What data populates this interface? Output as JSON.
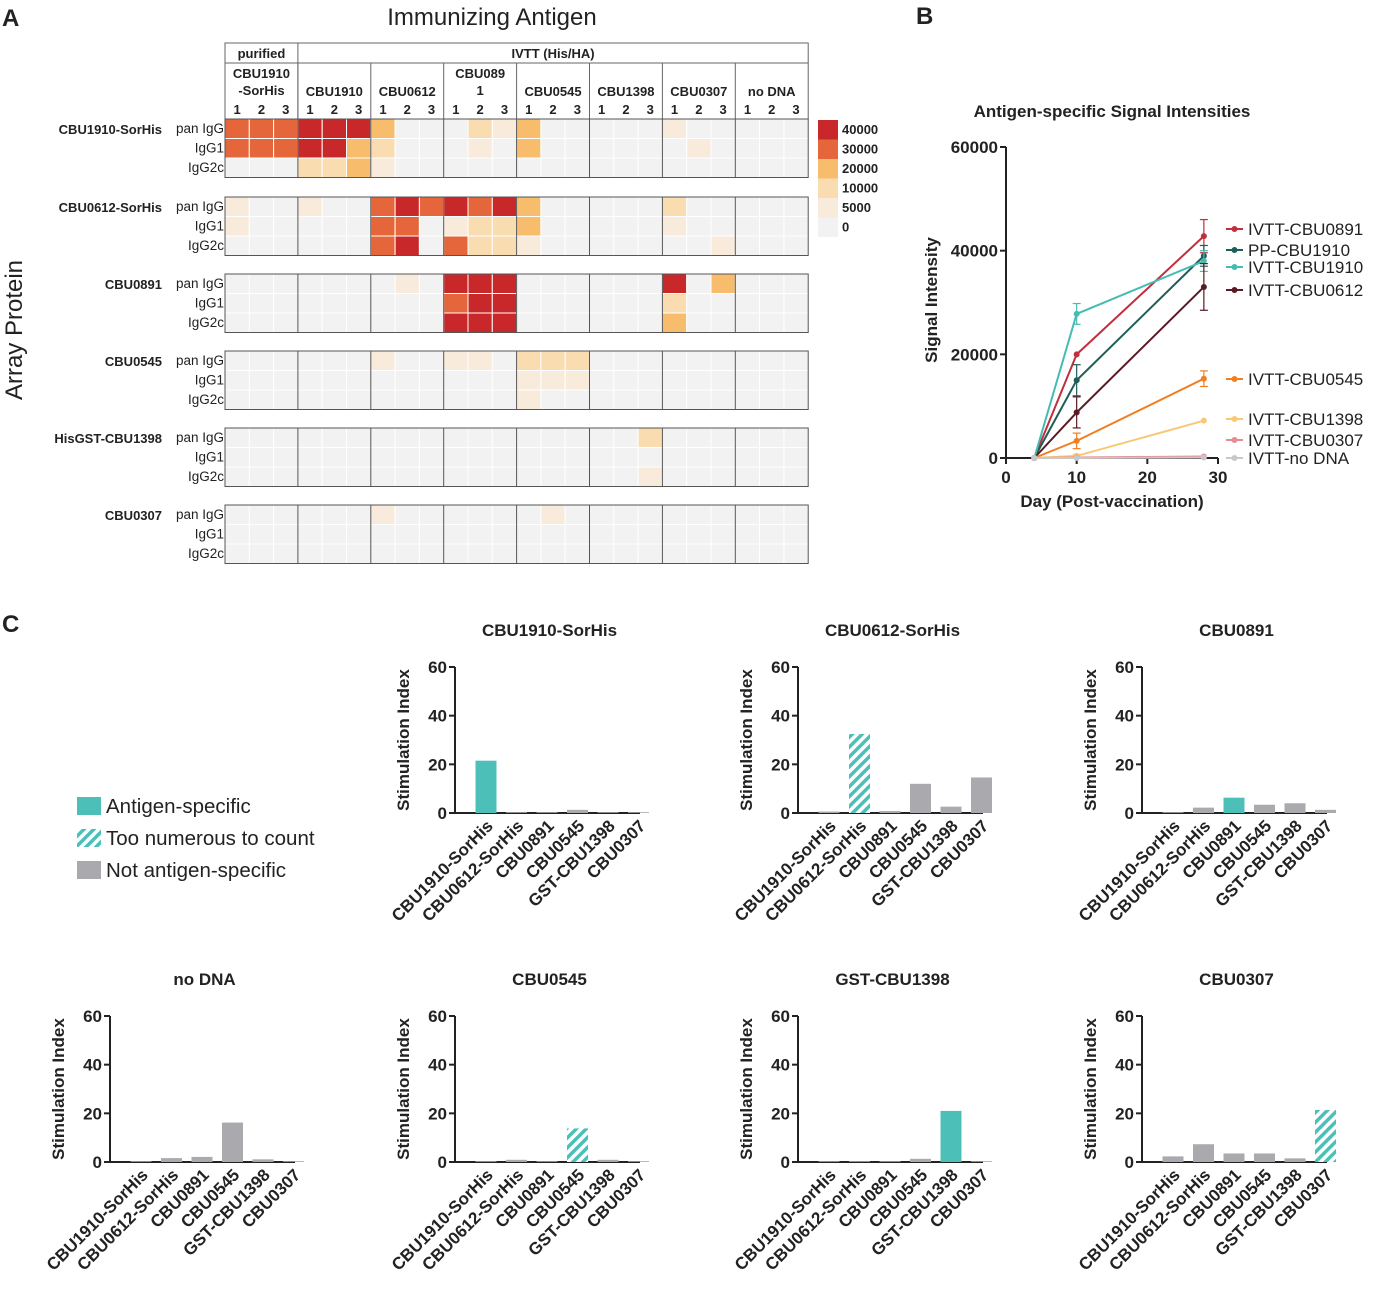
{
  "panel_labels": [
    "A",
    "B",
    "C"
  ],
  "heatmap": {
    "title": "Immunizing Antigen",
    "y_axis_title": "Array Protein",
    "group_headers": [
      "purified",
      "IVTT (His/HA)"
    ],
    "antigens": [
      "CBU1910\n-SorHis",
      "CBU1910",
      "CBU0612",
      "CBU089\n1",
      "CBU0545",
      "CBU1398",
      "CBU0307",
      "no DNA"
    ],
    "replicates": [
      "1",
      "2",
      "3"
    ],
    "proteins": [
      "CBU1910-SorHis",
      "CBU0612-SorHis",
      "CBU0891",
      "CBU0545",
      "HisGST-CBU1398",
      "CBU0307"
    ],
    "subclasses": [
      "pan IgG",
      "IgG1",
      "IgG2c"
    ],
    "legend": {
      "values": [
        "40000",
        "30000",
        "20000",
        "10000",
        "5000",
        "0"
      ],
      "colors": [
        "#c8282a",
        "#e4663a",
        "#f7bc6c",
        "#f9dcb0",
        "#f8ebdc",
        "#f2f2f2"
      ]
    },
    "palette": [
      "#f2f2f2",
      "#f8ebdc",
      "#f9dcb0",
      "#f7bc6c",
      "#e4663a",
      "#c8282a"
    ],
    "levels": [
      [
        [
          4,
          4,
          4,
          5,
          5,
          5,
          3,
          0,
          0,
          0,
          2,
          1,
          3,
          0,
          0,
          0,
          0,
          0,
          1,
          0,
          0,
          0,
          0,
          0
        ],
        [
          4,
          4,
          4,
          5,
          5,
          3,
          2,
          0,
          0,
          0,
          1,
          0,
          3,
          0,
          0,
          0,
          0,
          0,
          0,
          1,
          0,
          0,
          0,
          0
        ],
        [
          0,
          0,
          0,
          2,
          2,
          3,
          1,
          0,
          0,
          0,
          0,
          0,
          0,
          0,
          0,
          0,
          0,
          0,
          0,
          0,
          0,
          0,
          0,
          0
        ]
      ],
      [
        [
          1,
          0,
          0,
          1,
          0,
          0,
          4,
          5,
          4,
          5,
          4,
          5,
          3,
          0,
          0,
          0,
          0,
          0,
          2,
          0,
          0,
          0,
          0,
          0
        ],
        [
          1,
          0,
          0,
          0,
          0,
          0,
          4,
          4,
          0,
          1,
          2,
          2,
          3,
          0,
          0,
          0,
          0,
          0,
          1,
          0,
          0,
          0,
          0,
          0
        ],
        [
          0,
          0,
          0,
          0,
          0,
          0,
          4,
          5,
          0,
          4,
          2,
          2,
          1,
          0,
          0,
          0,
          0,
          0,
          0,
          0,
          1,
          0,
          0,
          0
        ]
      ],
      [
        [
          0,
          0,
          0,
          0,
          0,
          0,
          0,
          1,
          0,
          5,
          5,
          5,
          0,
          0,
          0,
          0,
          0,
          0,
          5,
          0,
          3,
          0,
          0,
          0
        ],
        [
          0,
          0,
          0,
          0,
          0,
          0,
          0,
          0,
          0,
          4,
          5,
          5,
          0,
          0,
          0,
          0,
          0,
          0,
          2,
          0,
          0,
          0,
          0,
          0
        ],
        [
          0,
          0,
          0,
          0,
          0,
          0,
          0,
          0,
          0,
          5,
          5,
          5,
          0,
          0,
          0,
          0,
          0,
          0,
          3,
          0,
          0,
          0,
          0,
          0
        ]
      ],
      [
        [
          0,
          0,
          0,
          0,
          0,
          0,
          1,
          0,
          0,
          1,
          1,
          0,
          2,
          2,
          2,
          0,
          0,
          0,
          0,
          0,
          0,
          0,
          0,
          0
        ],
        [
          0,
          0,
          0,
          0,
          0,
          0,
          0,
          0,
          0,
          0,
          0,
          0,
          1,
          1,
          1,
          0,
          0,
          0,
          0,
          0,
          0,
          0,
          0,
          0
        ],
        [
          0,
          0,
          0,
          0,
          0,
          0,
          0,
          0,
          0,
          0,
          0,
          0,
          1,
          0,
          0,
          0,
          0,
          0,
          0,
          0,
          0,
          0,
          0,
          0
        ]
      ],
      [
        [
          0,
          0,
          0,
          0,
          0,
          0,
          0,
          0,
          0,
          0,
          0,
          0,
          0,
          0,
          0,
          0,
          0,
          2,
          0,
          0,
          0,
          0,
          0,
          0
        ],
        [
          0,
          0,
          0,
          0,
          0,
          0,
          0,
          0,
          0,
          0,
          0,
          0,
          0,
          0,
          0,
          0,
          0,
          0,
          0,
          0,
          0,
          0,
          0,
          0
        ],
        [
          0,
          0,
          0,
          0,
          0,
          0,
          0,
          0,
          0,
          0,
          0,
          0,
          0,
          0,
          0,
          0,
          0,
          1,
          0,
          0,
          0,
          0,
          0,
          0
        ]
      ],
      [
        [
          0,
          0,
          0,
          0,
          0,
          0,
          1,
          0,
          0,
          0,
          0,
          0,
          0,
          1,
          0,
          0,
          0,
          0,
          0,
          0,
          0,
          0,
          0,
          0
        ],
        [
          0,
          0,
          0,
          0,
          0,
          0,
          0,
          0,
          0,
          0,
          0,
          0,
          0,
          0,
          0,
          0,
          0,
          0,
          0,
          0,
          0,
          0,
          0,
          0
        ],
        [
          0,
          0,
          0,
          0,
          0,
          0,
          0,
          0,
          0,
          0,
          0,
          0,
          0,
          0,
          0,
          0,
          0,
          0,
          0,
          0,
          0,
          0,
          0,
          0
        ]
      ]
    ]
  },
  "chart_data": [
    {
      "type": "line",
      "title": "Antigen-specific Signal Intensities",
      "xlabel": "Day (Post-vaccination)",
      "ylabel": "Signal Intensity",
      "xlim": [
        0,
        30
      ],
      "ylim": [
        0,
        60000
      ],
      "xticks": [
        "0",
        "10",
        "20",
        "30"
      ],
      "yticks": [
        "0",
        "20000",
        "40000",
        "60000"
      ],
      "x": [
        4,
        10,
        28
      ],
      "series": [
        {
          "name": "IVTT-CBU0891",
          "color": "#c0303c",
          "values": [
            0,
            20000,
            42800
          ],
          "err": [
            0,
            0,
            3200
          ]
        },
        {
          "name": "PP-CBU1910",
          "color": "#1f5e58",
          "values": [
            0,
            15000,
            39000
          ],
          "err": [
            0,
            3000,
            2000
          ]
        },
        {
          "name": "IVTT-CBU1910",
          "color": "#45bcb3",
          "values": [
            0,
            27800,
            38000
          ],
          "err": [
            0,
            2000,
            2000
          ]
        },
        {
          "name": "IVTT-CBU0612",
          "color": "#5a1a24",
          "values": [
            0,
            8800,
            33000
          ],
          "err": [
            0,
            3000,
            4500
          ]
        },
        {
          "name": "IVTT-CBU0545",
          "color": "#f07f22",
          "values": [
            0,
            3300,
            15300
          ],
          "err": [
            0,
            1500,
            1500
          ]
        },
        {
          "name": "IVTT-CBU1398",
          "color": "#f9c874",
          "values": [
            0,
            400,
            7200
          ],
          "err": [
            0,
            300,
            0
          ]
        },
        {
          "name": "IVTT-CBU0307",
          "color": "#e88a93",
          "values": [
            0,
            100,
            300
          ],
          "err": [
            0,
            0,
            0
          ]
        },
        {
          "name": "IVTT-no DNA",
          "color": "#c8c8c8",
          "values": [
            0,
            0,
            100
          ],
          "err": [
            0,
            0,
            0
          ]
        }
      ]
    },
    {
      "type": "bar",
      "groups": [
        {
          "title": "CBU1910-SorHis",
          "values": [
            21.5,
            0.3,
            0.3,
            1.3,
            0.3,
            0.3
          ],
          "kinds": [
            "s",
            "n",
            "n",
            "n",
            "n",
            "n"
          ]
        },
        {
          "title": "CBU0612-SorHis",
          "values": [
            0.6,
            32.5,
            0.8,
            12.0,
            2.6,
            14.6
          ],
          "kinds": [
            "n",
            "t",
            "n",
            "n",
            "n",
            "n"
          ]
        },
        {
          "title": "CBU0891",
          "values": [
            0.3,
            2.2,
            6.3,
            3.4,
            4.0,
            1.3
          ],
          "kinds": [
            "n",
            "n",
            "s",
            "n",
            "n",
            "n"
          ]
        },
        {
          "title": "no DNA",
          "values": [
            0.2,
            1.6,
            2.1,
            16.2,
            1.1,
            0.3
          ],
          "kinds": [
            "n",
            "n",
            "n",
            "n",
            "n",
            "n"
          ]
        },
        {
          "title": "CBU0545",
          "values": [
            0.2,
            0.9,
            0.2,
            13.8,
            0.9,
            0.2
          ],
          "kinds": [
            "n",
            "n",
            "n",
            "t",
            "n",
            "n"
          ]
        },
        {
          "title": "GST-CBU1398",
          "values": [
            0.2,
            0.2,
            0.2,
            1.3,
            21.0,
            0.2
          ],
          "kinds": [
            "n",
            "n",
            "n",
            "n",
            "s",
            "n"
          ]
        },
        {
          "title": "CBU0307",
          "values": [
            2.3,
            7.3,
            3.5,
            3.5,
            1.5,
            21.4
          ],
          "kinds": [
            "n",
            "n",
            "n",
            "n",
            "n",
            "t"
          ]
        }
      ],
      "categories": [
        "CBU1910-SorHis",
        "CBU0612-SorHis",
        "CBU0891",
        "CBU0545",
        "GST-CBU1398",
        "CBU0307"
      ],
      "ylabel": "Stimulation Index",
      "ylim": [
        0,
        60
      ],
      "yticks": [
        "0",
        "20",
        "40",
        "60"
      ],
      "legend": [
        {
          "label": "Antigen-specific",
          "kind": "s"
        },
        {
          "label": "Too numerous to count",
          "kind": "t"
        },
        {
          "label": "Not antigen-specific",
          "kind": "n"
        }
      ],
      "colors": {
        "s": "#4dbfb9",
        "t": "#4dbfb9",
        "n": "#a9a9ae"
      }
    }
  ]
}
